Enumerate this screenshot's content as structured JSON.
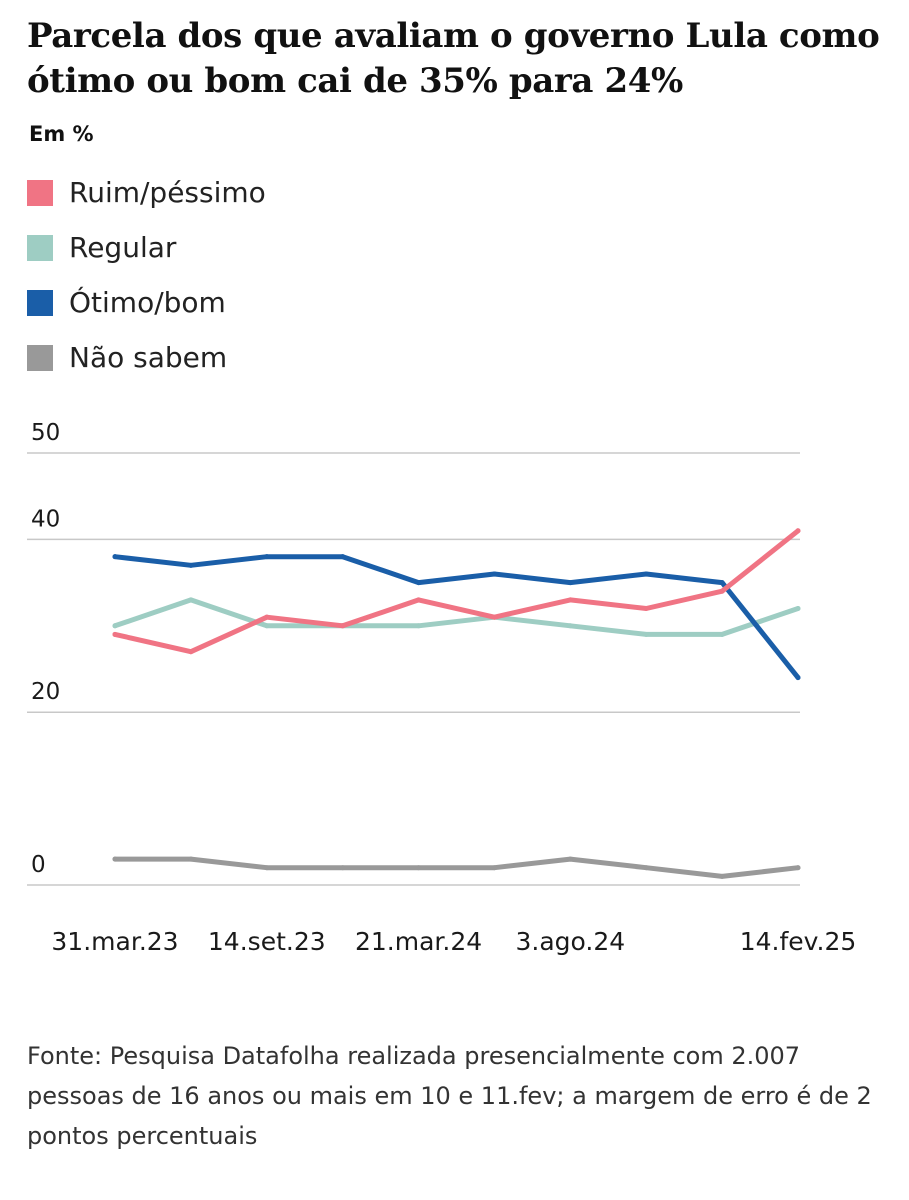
{
  "title": "Parcela dos que avaliam o governo Lula como ótimo ou bom cai de 35% para 24%",
  "unit_label": "Em %",
  "source": "Fonte: Pesquisa Datafolha realizada presencialmente com 2.007 pessoas de 16 anos ou mais em 10 e 11.fev; a margem de erro é de 2 pontos percentuais",
  "chart_data": {
    "type": "line",
    "title": "Parcela dos que avaliam o governo Lula como ótimo ou bom cai de 35% para 24%",
    "ylabel": "Em %",
    "xlabel": "",
    "ylim": [
      0,
      50
    ],
    "yticks": [
      0,
      20,
      40,
      50
    ],
    "x": [
      "31.mar.23",
      "",
      "14.set.23",
      "",
      "21.mar.24",
      "",
      "3.ago.24",
      "",
      "",
      "14.fev.25"
    ],
    "x_tick_labels": [
      "31.mar.23",
      "14.set.23",
      "21.mar.24",
      "3.ago.24",
      "14.fev.25"
    ],
    "grid": true,
    "legend": "top-left",
    "series": [
      {
        "name": "Ruim/péssimo",
        "color": "#f07484",
        "values": [
          29,
          27,
          31,
          30,
          33,
          31,
          33,
          32,
          34,
          41
        ]
      },
      {
        "name": "Regular",
        "color": "#9ecdc3",
        "values": [
          30,
          33,
          30,
          30,
          30,
          31,
          30,
          29,
          29,
          32
        ]
      },
      {
        "name": "Ótimo/bom",
        "color": "#1a5ea8",
        "values": [
          38,
          37,
          38,
          38,
          35,
          36,
          35,
          36,
          35,
          24
        ]
      },
      {
        "name": "Não sabem",
        "color": "#999999",
        "values": [
          3,
          3,
          2,
          2,
          2,
          2,
          3,
          2,
          1,
          2
        ]
      }
    ]
  }
}
